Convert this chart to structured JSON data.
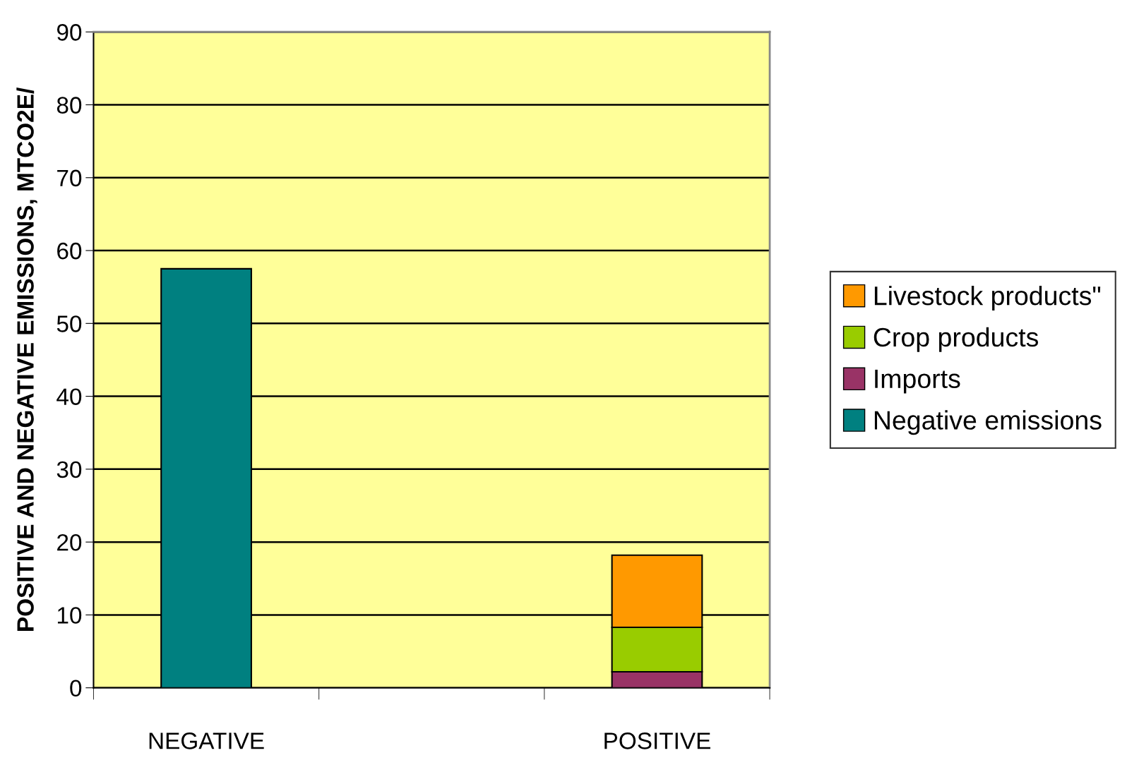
{
  "chart_data": {
    "type": "bar",
    "stacked": true,
    "ylabel": "POSITIVE AND NEGATIVE EMISSIONS, MTCO2E/",
    "categories": [
      "NEGATIVE",
      null,
      "POSITIVE"
    ],
    "series": [
      {
        "name": "Negative emissions",
        "color": "#008080",
        "values": [
          57.5,
          null,
          null
        ]
      },
      {
        "name": "Imports",
        "color": "#993366",
        "values": [
          null,
          null,
          2.2
        ]
      },
      {
        "name": "Crop products",
        "color": "#99cc00",
        "values": [
          null,
          null,
          6.1
        ]
      },
      {
        "name": "Livestock products\"",
        "color": "#ff9900",
        "values": [
          null,
          null,
          9.9
        ]
      }
    ],
    "ylim": [
      0,
      90
    ],
    "yticks": [
      0,
      10,
      20,
      30,
      40,
      50,
      60,
      70,
      80,
      90
    ],
    "grid": "y",
    "legend": "right"
  }
}
